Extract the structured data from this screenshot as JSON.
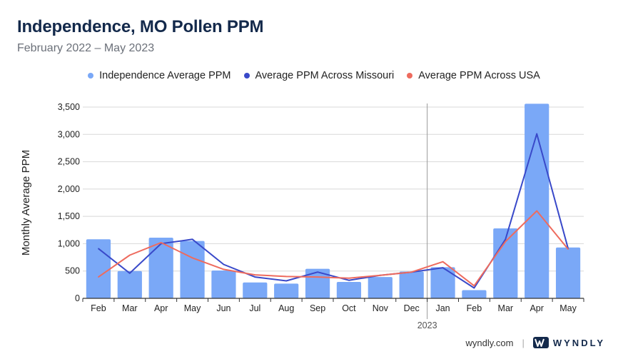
{
  "title": "Independence, MO Pollen PPM",
  "subtitle": "February 2022 – May 2023",
  "footer": {
    "site": "wyndly.com",
    "separator": "|",
    "brand": "WYNDLY"
  },
  "colors": {
    "bar": "#7aa8f7",
    "missouri": "#3949c9",
    "usa": "#ee6b5e",
    "grid": "#d8d8d8",
    "axis": "#333333",
    "divider": "#9a9a9a"
  },
  "chart_data": {
    "type": "bar",
    "ylabel": "Monthly Average PPM",
    "ylim": [
      0,
      3500
    ],
    "yticks": [
      0,
      500,
      1000,
      1500,
      2000,
      2500,
      3000,
      3500
    ],
    "ytick_labels": [
      "0",
      "500",
      "1,000",
      "1,500",
      "2,000",
      "2,500",
      "3,000",
      "3,500"
    ],
    "categories": [
      "Feb",
      "Mar",
      "Apr",
      "May",
      "Jun",
      "Jul",
      "Aug",
      "Sep",
      "Oct",
      "Nov",
      "Dec",
      "Jan",
      "Feb",
      "Mar",
      "Apr",
      "May"
    ],
    "year_marker": {
      "label": "2023",
      "before_index": 11
    },
    "grid": true,
    "legend_position": "top",
    "series": [
      {
        "name": "Independence Average PPM",
        "type": "bar",
        "values": [
          1080,
          500,
          1110,
          1050,
          510,
          290,
          270,
          540,
          300,
          390,
          490,
          570,
          150,
          1280,
          3560,
          930
        ]
      },
      {
        "name": "Average PPM Across Missouri",
        "type": "line",
        "values": [
          910,
          460,
          1000,
          1080,
          620,
          390,
          320,
          480,
          330,
          420,
          480,
          560,
          190,
          1080,
          3010,
          910
        ]
      },
      {
        "name": "Average PPM Across USA",
        "type": "line",
        "values": [
          390,
          790,
          1020,
          740,
          530,
          430,
          400,
          390,
          370,
          420,
          480,
          670,
          230,
          1040,
          1600,
          900
        ]
      }
    ]
  }
}
